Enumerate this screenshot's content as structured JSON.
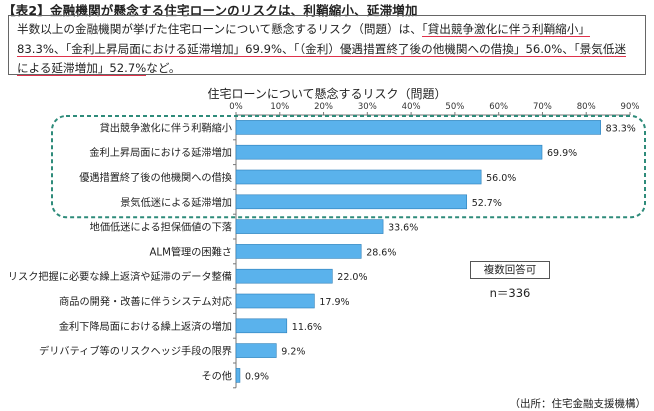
{
  "title": "【表2】金融機関が懸念する住宅ローンのリスクは、利鞘縮小、延滞増加",
  "summary": {
    "p1": "半数以上の金融機関が挙げた住宅ローンについて懸念するリスク（問題）は、",
    "h1": "「貸出競争激化に伴う利鞘縮小」83.3%、",
    "h2": "「金利上昇局面における延滞増加」69.9%、",
    "h3": "「（金利）優遇措置終了後の他機関への借換」56.0%、",
    "h4": "「景気低迷による延滞増加」52.7%",
    "p2": "など。"
  },
  "note_label": "複数回答可",
  "n_label": "n＝336",
  "source": "（出所：住宅金融支援機構）",
  "colors": {
    "bar": "#5ab2ec",
    "bar_edge": "#2d7fb8",
    "highlight": "#2e8b7a",
    "underline": "#e0314b"
  },
  "chart_data": {
    "type": "bar",
    "orientation": "horizontal",
    "title": "住宅ローンについて懸念するリスク（問題）",
    "categories": [
      "貸出競争激化に伴う利鞘縮小",
      "金利上昇局面における延滞増加",
      "優遇措置終了後の他機関への借換",
      "景気低迷による延滞増加",
      "地価低迷による担保価値の下落",
      "ALM管理の困難さ",
      "リスク把握に必要な繰上返済や延滞のデータ整備",
      "商品の開発・改善に伴うシステム対応",
      "金利下降局面における繰上返済の増加",
      "デリバティブ等のリスクヘッジ手段の限界",
      "その他"
    ],
    "values": [
      83.3,
      69.9,
      56.0,
      52.7,
      33.6,
      28.6,
      22.0,
      17.9,
      11.6,
      9.2,
      0.9
    ],
    "value_labels": [
      "83.3%",
      "69.9%",
      "56.0%",
      "52.7%",
      "33.6%",
      "28.6%",
      "22.0%",
      "17.9%",
      "11.6%",
      "9.2%",
      "0.9%"
    ],
    "xlim": [
      0,
      90
    ],
    "ticks": [
      0,
      10,
      20,
      30,
      40,
      50,
      60,
      70,
      80,
      90
    ],
    "tick_labels": [
      "0%",
      "10%",
      "20%",
      "30%",
      "40%",
      "50%",
      "60%",
      "70%",
      "80%",
      "90%"
    ],
    "highlighted_count": 4
  }
}
